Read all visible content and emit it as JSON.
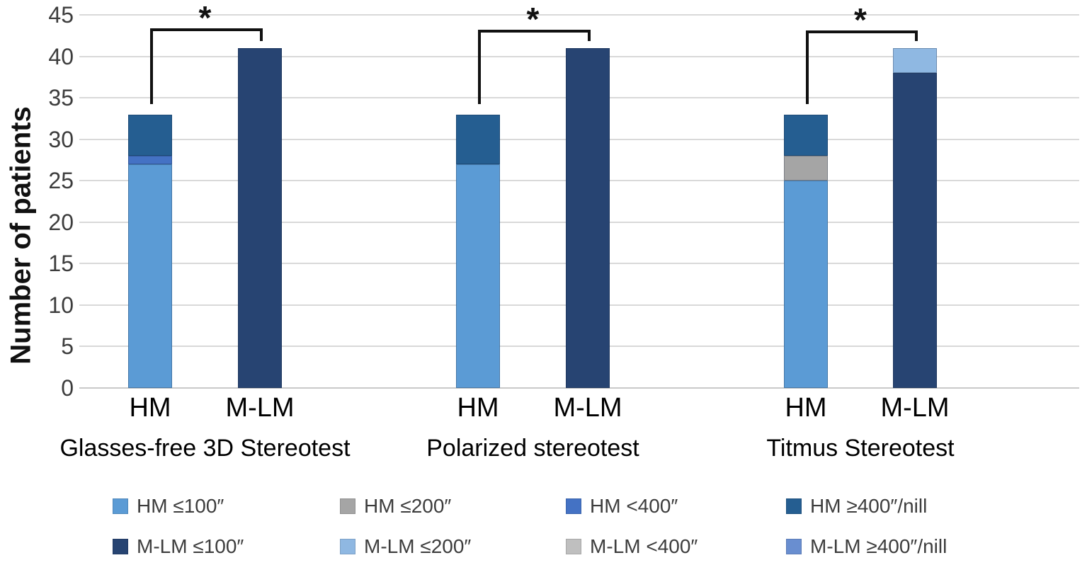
{
  "chart_data": {
    "type": "bar",
    "stacked": true,
    "title": "",
    "xlabel": "",
    "ylabel": "Number of patients",
    "ylim": [
      0,
      45
    ],
    "ytick_interval": 5,
    "yticks": [
      0,
      5,
      10,
      15,
      20,
      25,
      30,
      35,
      40,
      45
    ],
    "grid": true,
    "legend_position": "bottom",
    "series_colors": {
      "HM ≤100″": "#5B9BD5",
      "HM ≤200″": "#A5A5A5",
      "HM <400″": "#4472C4",
      "HM ≥400″/nill": "#255E91",
      "M-LM ≤100″": "#274472",
      "M-LM ≤200″": "#8FB8E2",
      "M-LM <400″": "#BFBFBF",
      "M-LM ≥400″/nill": "#698ED0"
    },
    "groups": [
      {
        "label": "Glasses-free 3D Stereotest",
        "significance": "*",
        "bars": [
          {
            "category": "HM",
            "total": 33,
            "segments": [
              {
                "series": "HM ≤100″",
                "value": 27
              },
              {
                "series": "HM <400″",
                "value": 1
              },
              {
                "series": "HM ≥400″/nill",
                "value": 5
              }
            ]
          },
          {
            "category": "M-LM",
            "total": 41,
            "segments": [
              {
                "series": "M-LM ≤100″",
                "value": 41
              }
            ]
          }
        ]
      },
      {
        "label": "Polarized stereotest",
        "significance": "*",
        "bars": [
          {
            "category": "HM",
            "total": 33,
            "segments": [
              {
                "series": "HM ≤100″",
                "value": 27
              },
              {
                "series": "HM ≥400″/nill",
                "value": 6
              }
            ]
          },
          {
            "category": "M-LM",
            "total": 41,
            "segments": [
              {
                "series": "M-LM ≤100″",
                "value": 41
              }
            ]
          }
        ]
      },
      {
        "label": "Titmus Stereotest",
        "significance": "*",
        "bars": [
          {
            "category": "HM",
            "total": 33,
            "segments": [
              {
                "series": "HM ≤100″",
                "value": 25
              },
              {
                "series": "HM ≤200″",
                "value": 3
              },
              {
                "series": "HM ≥400″/nill",
                "value": 5
              }
            ]
          },
          {
            "category": "M-LM",
            "total": 41,
            "segments": [
              {
                "series": "M-LM ≤100″",
                "value": 38
              },
              {
                "series": "M-LM ≤200″",
                "value": 3
              }
            ]
          }
        ]
      }
    ],
    "legend": [
      {
        "label": "HM ≤100″",
        "color": "#5B9BD5"
      },
      {
        "label": "HM ≤200″",
        "color": "#A5A5A5"
      },
      {
        "label": "HM <400″",
        "color": "#4472C4"
      },
      {
        "label": "HM ≥400″/nill",
        "color": "#255E91"
      },
      {
        "label": "M-LM ≤100″",
        "color": "#274472"
      },
      {
        "label": "M-LM ≤200″",
        "color": "#8FB8E2"
      },
      {
        "label": "M-LM <400″",
        "color": "#BFBFBF"
      },
      {
        "label": "M-LM ≥400″/nill",
        "color": "#698ED0"
      }
    ]
  }
}
